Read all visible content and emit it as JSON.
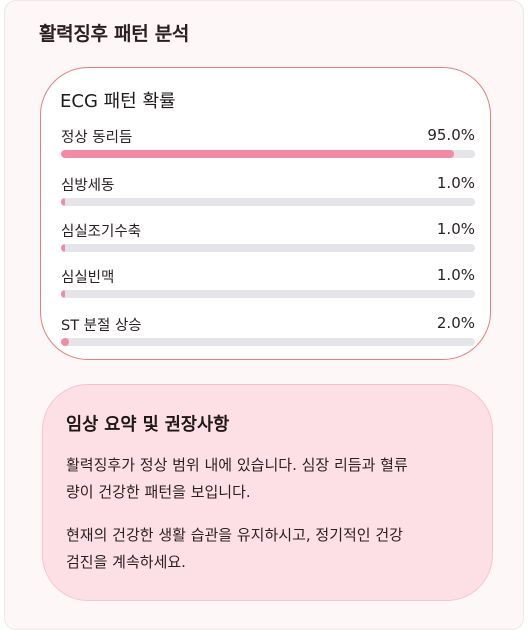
{
  "panel": {
    "title": "활력징후 패턴 분석"
  },
  "ecg": {
    "title": "ECG 패턴 확률",
    "items": [
      {
        "label": "정상 동리듬",
        "value_text": "95.0%",
        "percent": 95.0
      },
      {
        "label": "심방세동",
        "value_text": "1.0%",
        "percent": 1.0
      },
      {
        "label": "심실조기수축",
        "value_text": "1.0%",
        "percent": 1.0
      },
      {
        "label": "심실빈맥",
        "value_text": "1.0%",
        "percent": 1.0
      },
      {
        "label": "ST 분절 상승",
        "value_text": "2.0%",
        "percent": 2.0
      }
    ],
    "bar_color": "#f28aa6",
    "track_color": "#e4e4e9"
  },
  "summary": {
    "title": "임상 요약 및 권장사항",
    "paragraph1_line1": "활력징후가 정상 범위 내에 있습니다. 심장 리듬과 혈류",
    "paragraph1_line2": "량이 건강한 패턴을 보입니다.",
    "paragraph2_line1": "현재의 건강한 생활 습관을 유지하시고, 정기적인 건강",
    "paragraph2_line2": "검진을 계속하세요."
  }
}
